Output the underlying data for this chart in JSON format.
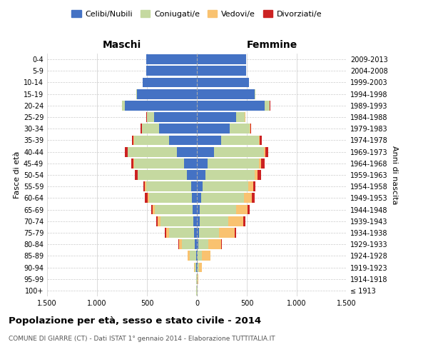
{
  "age_groups": [
    "100+",
    "95-99",
    "90-94",
    "85-89",
    "80-84",
    "75-79",
    "70-74",
    "65-69",
    "60-64",
    "55-59",
    "50-54",
    "45-49",
    "40-44",
    "35-39",
    "30-34",
    "25-29",
    "20-24",
    "15-19",
    "10-14",
    "5-9",
    "0-4"
  ],
  "birth_years": [
    "≤ 1913",
    "1914-1918",
    "1919-1923",
    "1924-1928",
    "1929-1933",
    "1934-1938",
    "1939-1943",
    "1944-1948",
    "1949-1953",
    "1954-1958",
    "1959-1963",
    "1964-1968",
    "1969-1973",
    "1974-1978",
    "1979-1983",
    "1984-1988",
    "1989-1993",
    "1994-1998",
    "1999-2003",
    "2004-2008",
    "2009-2013"
  ],
  "male": {
    "celibi": [
      2,
      2,
      5,
      10,
      20,
      30,
      35,
      40,
      50,
      60,
      100,
      130,
      200,
      280,
      380,
      430,
      720,
      600,
      540,
      510,
      510
    ],
    "coniugati": [
      2,
      5,
      20,
      60,
      130,
      250,
      330,
      380,
      430,
      450,
      490,
      500,
      490,
      350,
      170,
      70,
      30,
      5,
      2,
      0,
      0
    ],
    "vedovi": [
      0,
      0,
      5,
      20,
      30,
      30,
      30,
      20,
      15,
      10,
      5,
      5,
      5,
      5,
      2,
      1,
      1,
      0,
      0,
      0,
      0
    ],
    "divorziati": [
      0,
      0,
      0,
      2,
      5,
      10,
      15,
      15,
      25,
      15,
      25,
      25,
      25,
      15,
      10,
      5,
      2,
      0,
      0,
      0,
      0
    ]
  },
  "female": {
    "nubili": [
      2,
      2,
      5,
      8,
      12,
      20,
      25,
      30,
      40,
      55,
      85,
      110,
      170,
      240,
      330,
      390,
      680,
      580,
      520,
      490,
      490
    ],
    "coniugate": [
      2,
      5,
      15,
      45,
      100,
      200,
      290,
      360,
      430,
      460,
      490,
      510,
      500,
      380,
      200,
      90,
      50,
      8,
      2,
      0,
      0
    ],
    "vedove": [
      2,
      8,
      30,
      80,
      130,
      160,
      150,
      120,
      80,
      50,
      30,
      20,
      15,
      10,
      5,
      3,
      2,
      0,
      0,
      0,
      0
    ],
    "divorziate": [
      0,
      0,
      2,
      5,
      8,
      12,
      18,
      20,
      30,
      20,
      40,
      40,
      30,
      20,
      10,
      5,
      2,
      0,
      0,
      0,
      0
    ]
  },
  "colors": {
    "celibi": "#4472C4",
    "coniugati": "#c5d9a0",
    "vedovi": "#f9c270",
    "divorziati": "#cc2222"
  },
  "legend_labels": [
    "Celibi/Nubili",
    "Coniugati/e",
    "Vedovi/e",
    "Divorziati/e"
  ],
  "title": "Popolazione per età, sesso e stato civile - 2014",
  "subtitle": "COMUNE DI GIARRE (CT) - Dati ISTAT 1° gennaio 2014 - Elaborazione TUTTITALIA.IT",
  "ylabel_left": "Fasce di età",
  "ylabel_right": "Anni di nascita",
  "xlabel_left": "Maschi",
  "xlabel_right": "Femmine",
  "xlim": 1500,
  "xticks": [
    -1500,
    -1000,
    -500,
    0,
    500,
    1000,
    1500
  ],
  "xticklabels": [
    "1.500",
    "1.000",
    "500",
    "0",
    "500",
    "1.000",
    "1.500"
  ],
  "background_color": "#ffffff",
  "grid_color": "#cccccc"
}
